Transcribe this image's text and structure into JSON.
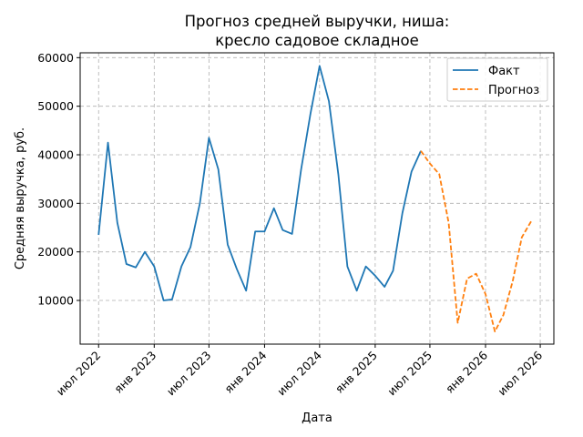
{
  "chart_data": {
    "type": "line",
    "title_lines": [
      "Прогноз средней выручки, ниша:",
      "кресло садовое складное"
    ],
    "xlabel": "Дата",
    "ylabel": "Средняя выручка, руб.",
    "xlim": [
      "2022-05-01",
      "2026-08-15"
    ],
    "ylim": [
      1000,
      61000
    ],
    "yticks": [
      10000,
      20000,
      30000,
      40000,
      50000,
      60000
    ],
    "xticks": [
      {
        "date": "2022-07-01",
        "label": "июл 2022"
      },
      {
        "date": "2023-01-01",
        "label": "янв 2023"
      },
      {
        "date": "2023-07-01",
        "label": "июл 2023"
      },
      {
        "date": "2024-01-01",
        "label": "янв 2024"
      },
      {
        "date": "2024-07-01",
        "label": "июл 2024"
      },
      {
        "date": "2025-01-01",
        "label": "янв 2025"
      },
      {
        "date": "2025-07-01",
        "label": "июл 2025"
      },
      {
        "date": "2026-01-01",
        "label": "янв 2026"
      },
      {
        "date": "2026-07-01",
        "label": "июл 2026"
      }
    ],
    "grid": true,
    "legend_position": "top-right",
    "series": [
      {
        "name": "Факт",
        "color": "#1f77b4",
        "style": "solid",
        "x": [
          "2022-07-01",
          "2022-08-01",
          "2022-09-01",
          "2022-10-01",
          "2022-11-01",
          "2022-12-01",
          "2023-01-01",
          "2023-02-01",
          "2023-03-01",
          "2023-04-01",
          "2023-05-01",
          "2023-06-01",
          "2023-07-01",
          "2023-08-01",
          "2023-09-01",
          "2023-10-01",
          "2023-11-01",
          "2023-12-01",
          "2024-01-01",
          "2024-02-01",
          "2024-03-01",
          "2024-04-01",
          "2024-05-01",
          "2024-06-01",
          "2024-07-01",
          "2024-08-01",
          "2024-09-01",
          "2024-10-01",
          "2024-11-01",
          "2024-12-01",
          "2025-01-01",
          "2025-02-01",
          "2025-03-01",
          "2025-04-01",
          "2025-05-01",
          "2025-06-01"
        ],
        "y": [
          23500,
          42500,
          26000,
          17500,
          16800,
          20000,
          17000,
          10000,
          10200,
          17000,
          21000,
          30000,
          43500,
          37000,
          21500,
          16500,
          12000,
          24200,
          24200,
          29000,
          24500,
          23700,
          37000,
          48500,
          58300,
          51000,
          36000,
          17000,
          12000,
          17000,
          15100,
          12800,
          16100,
          28000,
          36500,
          40800
        ]
      },
      {
        "name": "Прогноз",
        "color": "#ff7f0e",
        "style": "dashed",
        "x": [
          "2025-06-01",
          "2025-07-01",
          "2025-08-01",
          "2025-09-01",
          "2025-10-01",
          "2025-11-01",
          "2025-12-01",
          "2026-01-01",
          "2026-02-01",
          "2026-03-01",
          "2026-04-01",
          "2026-05-01",
          "2026-06-01"
        ],
        "y": [
          40800,
          38200,
          36000,
          26000,
          5400,
          14500,
          15500,
          11300,
          3600,
          7000,
          14000,
          23000,
          26300
        ]
      }
    ]
  }
}
